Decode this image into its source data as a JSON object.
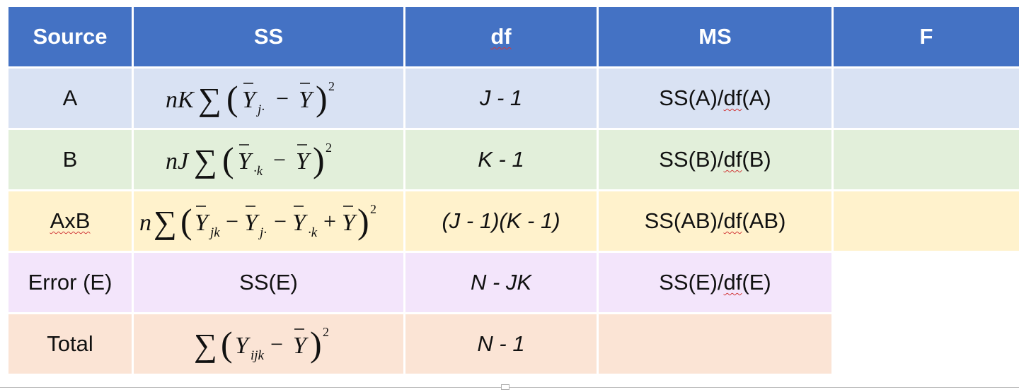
{
  "header": {
    "source": "Source",
    "ss": "SS",
    "df": "df",
    "ms": "MS",
    "f": "F"
  },
  "rows": [
    {
      "source": "A",
      "df": "J - 1",
      "ms_pre": "SS(A)/",
      "ms_df": "df",
      "ms_post": "(A)",
      "f": ""
    },
    {
      "source": "B",
      "df": "K - 1",
      "ms_pre": "SS(B)/",
      "ms_df": "df",
      "ms_post": "(B)",
      "f": ""
    },
    {
      "source": "AxB",
      "df": "(J - 1)(K - 1)",
      "ms_pre": "SS(AB)/",
      "ms_df": "df",
      "ms_post": "(AB)",
      "f": ""
    },
    {
      "source": "Error (E)",
      "ss": "SS(E)",
      "df": "N - JK",
      "ms_pre": "SS(E)/",
      "ms_df": "df",
      "ms_post": "(E)"
    },
    {
      "source": "Total",
      "df": "N - 1",
      "ms": ""
    }
  ]
}
